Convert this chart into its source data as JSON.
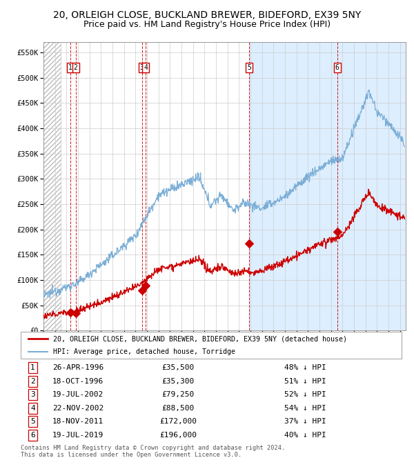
{
  "title": "20, ORLEIGH CLOSE, BUCKLAND BREWER, BIDEFORD, EX39 5NY",
  "subtitle": "Price paid vs. HM Land Registry's House Price Index (HPI)",
  "title_fontsize": 10,
  "subtitle_fontsize": 9,
  "ylim": [
    0,
    570000
  ],
  "yticks": [
    0,
    50000,
    100000,
    150000,
    200000,
    250000,
    300000,
    350000,
    400000,
    450000,
    500000,
    550000
  ],
  "ytick_labels": [
    "£0",
    "£50K",
    "£100K",
    "£150K",
    "£200K",
    "£250K",
    "£300K",
    "£350K",
    "£400K",
    "£450K",
    "£500K",
    "£550K"
  ],
  "xlim_start": 1994.0,
  "xlim_end": 2025.5,
  "background_hatch_end": 1995.5,
  "shaded_region_start": 2011.9,
  "red_line_color": "#cc0000",
  "blue_line_color": "#7aaed6",
  "blue_fill_color": "#ddeeff",
  "sales": [
    {
      "label": "1",
      "date_num": 1996.32,
      "price": 35500
    },
    {
      "label": "2",
      "date_num": 1996.8,
      "price": 35300
    },
    {
      "label": "3",
      "date_num": 2002.55,
      "price": 79250
    },
    {
      "label": "4",
      "date_num": 2002.9,
      "price": 88500
    },
    {
      "label": "5",
      "date_num": 2011.88,
      "price": 172000
    },
    {
      "label": "6",
      "date_num": 2019.54,
      "price": 196000
    }
  ],
  "legend_label_red": "20, ORLEIGH CLOSE, BUCKLAND BREWER, BIDEFORD, EX39 5NY (detached house)",
  "legend_label_blue": "HPI: Average price, detached house, Torridge",
  "table_rows": [
    {
      "num": "1",
      "date": "26-APR-1996",
      "price": "£35,500",
      "pct": "48% ↓ HPI"
    },
    {
      "num": "2",
      "date": "18-OCT-1996",
      "price": "£35,300",
      "pct": "51% ↓ HPI"
    },
    {
      "num": "3",
      "date": "19-JUL-2002",
      "price": "£79,250",
      "pct": "52% ↓ HPI"
    },
    {
      "num": "4",
      "date": "22-NOV-2002",
      "price": "£88,500",
      "pct": "54% ↓ HPI"
    },
    {
      "num": "5",
      "date": "18-NOV-2011",
      "price": "£172,000",
      "pct": "37% ↓ HPI"
    },
    {
      "num": "6",
      "date": "19-JUL-2019",
      "price": "£196,000",
      "pct": "40% ↓ HPI"
    }
  ],
  "footer_text": "Contains HM Land Registry data © Crown copyright and database right 2024.\nThis data is licensed under the Open Government Licence v3.0.",
  "grid_color": "#cccccc",
  "dashed_line_color": "#cc0000"
}
